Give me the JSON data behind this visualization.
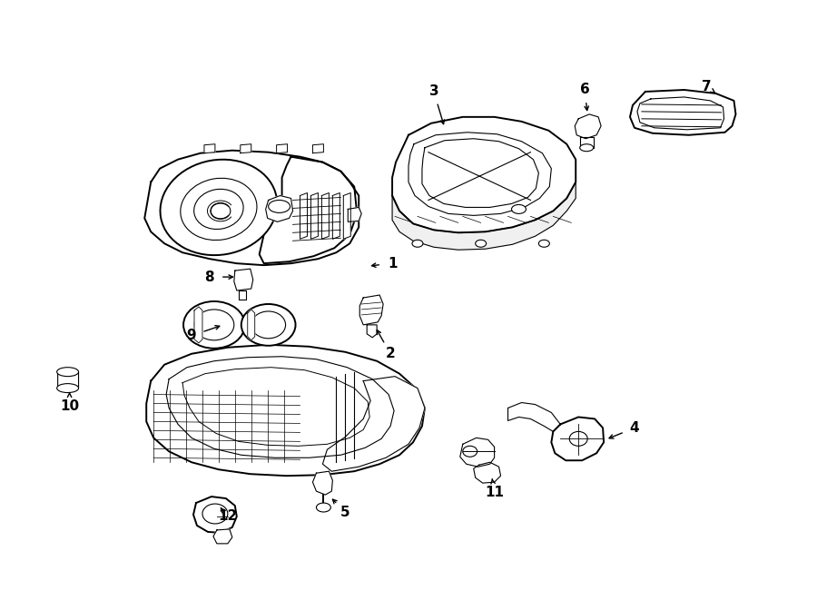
{
  "bg_color": "#ffffff",
  "line_color": "#000000",
  "figsize": [
    9.0,
    6.61
  ],
  "dpi": 100,
  "label_fontsize": 11,
  "lw_main": 1.4,
  "lw_thin": 0.8,
  "lw_inner": 0.6
}
